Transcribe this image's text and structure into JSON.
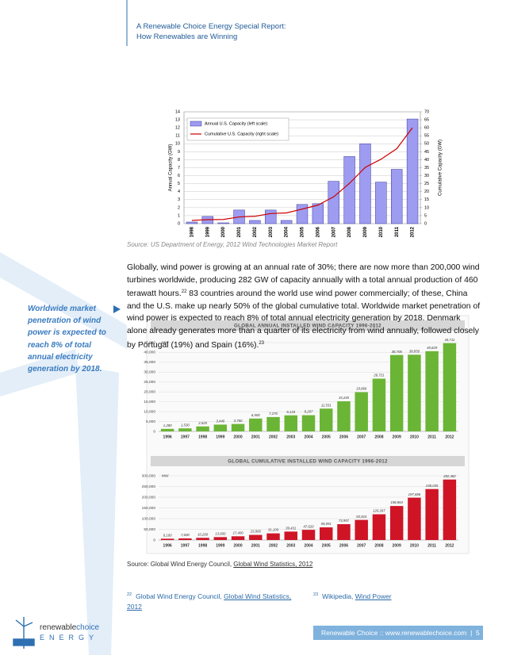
{
  "header": {
    "line_1": "A Renewable Choice Energy Special Report:",
    "line_2": "How Renewables are Winning"
  },
  "chart_data": [
    {
      "type": "combo",
      "ylabel": "Annual Capacity (GW)",
      "y2label": "Cumulative Capacity (GW)",
      "categories": [
        "1998",
        "1999",
        "2000",
        "2001",
        "2002",
        "2003",
        "2004",
        "2005",
        "2006",
        "2007",
        "2008",
        "2009",
        "2010",
        "2011",
        "2012"
      ],
      "series": [
        {
          "name": "Annual U.S. Capacity (left scale)",
          "type": "bar",
          "color": "#9d9cf0",
          "values": [
            0.2,
            0.9,
            0.1,
            1.7,
            0.4,
            1.7,
            0.4,
            2.4,
            2.5,
            5.3,
            8.4,
            10.0,
            5.2,
            6.8,
            13.1
          ]
        },
        {
          "name": "Cumulative U.S. Capacity (right scale)",
          "type": "line",
          "axis": "y2",
          "color": "#cc0000",
          "values": [
            2,
            2.5,
            2.6,
            4.2,
            4.6,
            6.3,
            6.7,
            9.1,
            11.6,
            16.8,
            25.2,
            35.2,
            40.3,
            46.9,
            60
          ]
        }
      ],
      "ylim": [
        0,
        14
      ],
      "yticks": [
        0,
        1,
        2,
        3,
        4,
        5,
        6,
        7,
        8,
        9,
        10,
        11,
        12,
        13,
        14
      ],
      "y2lim": [
        0,
        70
      ],
      "y2ticks": [
        0,
        5,
        10,
        15,
        20,
        25,
        30,
        35,
        40,
        45,
        50,
        55,
        60,
        65,
        70
      ],
      "grid": true
    },
    {
      "type": "bar",
      "title": "GLOBAL ANNUAL INSTALLED WIND CAPACITY 1996-2012",
      "unit": "MW",
      "categories": [
        "1996",
        "1997",
        "1998",
        "1999",
        "2000",
        "2001",
        "2002",
        "2003",
        "2004",
        "2005",
        "2006",
        "2007",
        "2008",
        "2009",
        "2010",
        "2011",
        "2012"
      ],
      "values": [
        1280,
        1530,
        2520,
        3440,
        3760,
        6500,
        7270,
        8133,
        8207,
        11531,
        15245,
        19866,
        26721,
        38706,
        38850,
        40629,
        44711
      ],
      "value_labels": [
        "1,280",
        "1,530",
        "2,520",
        "3,440",
        "3,760",
        "6,500",
        "7,270",
        "8,133",
        "8,207",
        "11,531",
        "15,245",
        "19,866",
        "26,721",
        "38,706",
        "38,850",
        "40,629",
        "44,711"
      ],
      "color": "#6bb536",
      "ylim": [
        0,
        45000
      ],
      "yticks": [
        0,
        {
          "value": 5000,
          "label": "5,000"
        },
        {
          "value": 10000,
          "label": "10,000"
        },
        {
          "value": 15000,
          "label": "15,000"
        },
        {
          "value": 20000,
          "label": "20,000"
        },
        {
          "value": 25000,
          "label": "25,000"
        },
        {
          "value": 30000,
          "label": "30,000"
        },
        {
          "value": 35000,
          "label": "35,000"
        },
        {
          "value": 40000,
          "label": "40,000"
        },
        {
          "value": 45000,
          "label": "45,000"
        }
      ],
      "grid": true
    },
    {
      "type": "bar",
      "title": "GLOBAL CUMULATIVE INSTALLED WIND CAPACITY 1996-2012",
      "unit": "MW",
      "categories": [
        "1996",
        "1997",
        "1998",
        "1999",
        "2000",
        "2001",
        "2002",
        "2003",
        "2004",
        "2005",
        "2006",
        "2007",
        "2008",
        "2009",
        "2010",
        "2011",
        "2012"
      ],
      "values": [
        6100,
        7600,
        10200,
        13600,
        17400,
        23900,
        31100,
        39431,
        47620,
        59091,
        73957,
        93924,
        120267,
        158864,
        197686,
        238035,
        282482
      ],
      "value_labels": [
        "6,100",
        "7,600",
        "10,200",
        "13,600",
        "17,400",
        "23,900",
        "31,100",
        "39,431",
        "47,620",
        "59,091",
        "73,957",
        "93,924",
        "120,267",
        "158,864",
        "197,686",
        "238,035",
        "282,482"
      ],
      "color": "#cf1426",
      "ylim": [
        0,
        300000
      ],
      "yticks": [
        0,
        {
          "value": 50000,
          "label": "50,000"
        },
        {
          "value": 100000,
          "label": "100,000"
        },
        {
          "value": 150000,
          "label": "150,000"
        },
        {
          "value": 200000,
          "label": "200,000"
        },
        {
          "value": 250000,
          "label": "250,000"
        },
        {
          "value": 300000,
          "label": "300,000"
        }
      ],
      "grid": true
    }
  ],
  "source_1": "Source: US Department of Energy, 2012 Wind Technologies Market Report",
  "body": {
    "text_1": "Globally, wind power is growing at an annual rate of 30%; there are now more than 200,000 wind turbines worldwide, producing 282 GW of capacity annually with a total annual production of 460 terawatt hours.",
    "note_1": "22",
    "text_2": " 83 countries around the world use wind power commercially; of these, China and the U.S. make up nearly 50% of the global cumulative total. Worldwide market penetration of wind power is expected to reach 8% of total annual electricity generation by 2018.  Denmark alone already generates more than a quarter of its electricity from wind annually, followed closely by Portugal (19%) and Spain (16%).",
    "note_2": "23"
  },
  "sidebar": "Worldwide market penetration of wind power is expected to reach 8% of total annual electricity generation by 2018.",
  "source_2": {
    "text": "Source: Global Wind Energy Council, ",
    "link": "Global Wind Statistics, 2012"
  },
  "footnotes": [
    {
      "number": "22",
      "text": "Global Wind Energy Council, ",
      "link": "Global Wind Statistics, 2012"
    },
    {
      "number": "23",
      "text": "Wikipedia, ",
      "link": "Wind Power"
    }
  ],
  "footer": {
    "logo_1": "renewable",
    "logo_2": "choice",
    "logo_3": "ENERGY",
    "site": "Renewable Choice :: www.renewablechoice.com",
    "separator": "|",
    "page": 5
  }
}
